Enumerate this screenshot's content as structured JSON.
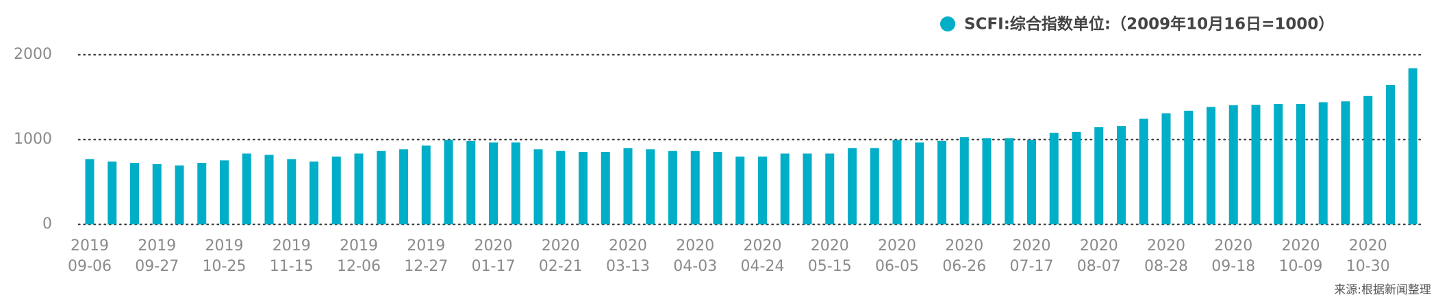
{
  "chart_data": {
    "type": "bar",
    "categories": [
      "2019\n09-06",
      null,
      null,
      "2019\n09-27",
      null,
      null,
      "2019\n10-25",
      null,
      null,
      "2019\n11-15",
      null,
      null,
      "2019\n12-06",
      null,
      null,
      "2019\n12-27",
      null,
      null,
      "2020\n01-17",
      null,
      null,
      "2020\n02-21",
      null,
      null,
      "2020\n03-13",
      null,
      null,
      "2020\n04-03",
      null,
      null,
      "2020\n04-24",
      null,
      null,
      "2020\n05-15",
      null,
      null,
      "2020\n06-05",
      null,
      null,
      "2020\n06-26",
      null,
      null,
      "2020\n07-17",
      null,
      null,
      "2020\n08-07",
      null,
      null,
      "2020\n08-28",
      null,
      null,
      "2020\n09-18",
      null,
      null,
      "2020\n10-09",
      null,
      null,
      "2020\n10-30",
      null,
      null
    ],
    "series": [
      {
        "name": "SCFI:综合指数单位:（2009年10月16日=1000）",
        "color": "#00aec7",
        "values": [
          770,
          740,
          725,
          710,
          695,
          725,
          755,
          835,
          820,
          770,
          740,
          800,
          835,
          865,
          885,
          930,
          995,
          985,
          965,
          965,
          885,
          865,
          855,
          855,
          900,
          885,
          865,
          865,
          855,
          800,
          800,
          835,
          835,
          835,
          900,
          900,
          995,
          965,
          985,
          1030,
          1015,
          1015,
          995,
          1080,
          1090,
          1145,
          1160,
          1245,
          1310,
          1340,
          1385,
          1405,
          1410,
          1420,
          1420,
          1440,
          1450,
          1515,
          1645,
          1840
        ]
      }
    ],
    "ylim": [
      0,
      2000
    ],
    "yticks": [
      0,
      1000,
      2000
    ],
    "grid": true,
    "legend": "top-right",
    "source": "来源:根据新闻整理"
  }
}
